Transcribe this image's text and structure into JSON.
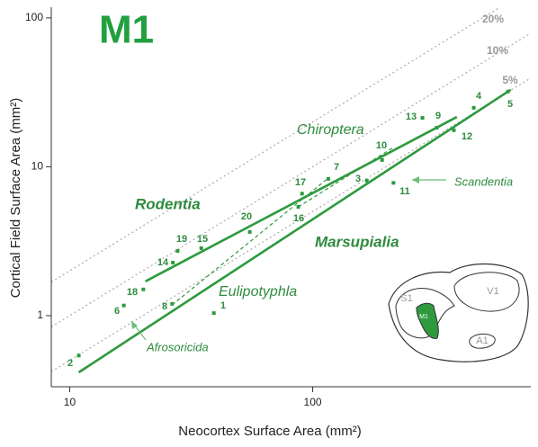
{
  "chart_data": {
    "type": "scatter",
    "title": "M1",
    "x_label": "Neocortex Surface Area (mm²)",
    "y_label": "Cortical Field Surface Area (mm²)",
    "log_x": true,
    "log_y": true,
    "xlim": [
      8.4,
      790
    ],
    "ylim": [
      0.333,
      118
    ],
    "xticks": [
      10,
      100
    ],
    "yticks": [
      1,
      10,
      100
    ],
    "color": "#2e9a3e",
    "points": {
      "labels": [
        "1",
        "2",
        "3",
        "4",
        "5",
        "6",
        "7",
        "8",
        "9",
        "10",
        "11",
        "12",
        "13",
        "14",
        "15",
        "16",
        "17",
        "18",
        "19",
        "20"
      ],
      "x": [
        39.2,
        10.9,
        167,
        460,
        636,
        16.7,
        116,
        26.4,
        324,
        193,
        215,
        381,
        283,
        26.6,
        34.8,
        87.3,
        90.4,
        20.1,
        27.8,
        55.1
      ],
      "y": [
        1.04,
        0.54,
        8.06,
        24.9,
        32,
        1.17,
        8.3,
        1.2,
        18.3,
        11.1,
        7.8,
        17.6,
        21.3,
        2.27,
        2.84,
        5.38,
        6.6,
        1.5,
        2.72,
        3.65
      ]
    },
    "fit_lines": [
      {
        "x": [
          20.5,
          392
        ],
        "y": [
          1.7,
          21.6
        ],
        "dashed": false
      },
      {
        "x": [
          10.9,
          653
        ],
        "y": [
          0.416,
          32.9
        ],
        "dashed": false
      },
      {
        "x": [
          26.4,
          116
        ],
        "y": [
          1.18,
          8.4
        ],
        "dashed": true
      },
      {
        "x": [
          87.3,
          215
        ],
        "y": [
          5.38,
          13.5
        ],
        "dashed": true
      }
    ],
    "reference_lines": [
      {
        "label": "20%",
        "value": 20
      },
      {
        "label": "10%",
        "value": 10
      },
      {
        "label": "5%",
        "value": 5
      }
    ],
    "annotations": [
      "Rodentia",
      "Chiroptera",
      "Marsupialia",
      "Eulipotyphla",
      "Scandentia",
      "Afrosoricida"
    ],
    "inset_labels": [
      "S1",
      "V1",
      "M1",
      "A1"
    ]
  }
}
